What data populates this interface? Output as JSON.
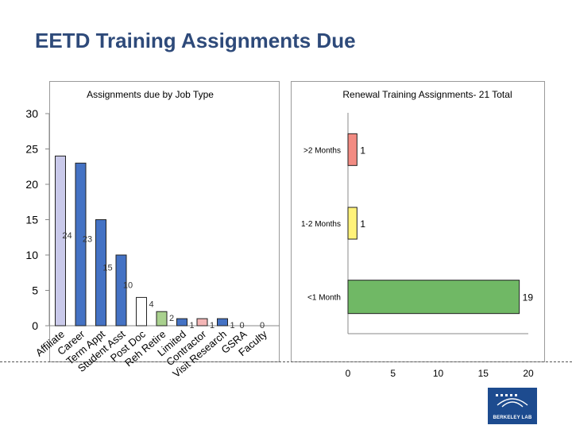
{
  "slide": {
    "title": "EETD Training Assignments Due",
    "logo_text": "BERKELEY LAB"
  },
  "chart_data": [
    {
      "type": "bar",
      "title": "Assignments due by Job Type",
      "categories": [
        "Affiliate",
        "Career",
        "Term Appt",
        "Student Asst",
        "Post Doc",
        "Reh Retire",
        "Limited",
        "Contractor",
        "Visit Research",
        "GSRA",
        "Faculty"
      ],
      "values": [
        24,
        23,
        15,
        10,
        4,
        2,
        1,
        1,
        1,
        0,
        0
      ],
      "colors": [
        "#c9c9ea",
        "#4472c4",
        "#4472c4",
        "#4472c4",
        "#ffffff",
        "#a9d18e",
        "#4472c4",
        "#f4b6b6",
        "#4472c4",
        "#ffffff",
        "#ffffff"
      ],
      "ylim": [
        0,
        30
      ],
      "yticks": [
        0,
        5,
        10,
        15,
        20,
        25,
        30
      ],
      "grid": false,
      "legend": "none"
    },
    {
      "type": "bar",
      "orientation": "horizontal",
      "title": "Renewal Training Assignments- 21 Total",
      "categories": [
        ">2 Months",
        "1-2 Months",
        "<1 Month"
      ],
      "values": [
        1,
        1,
        19
      ],
      "colors": [
        "#f28b82",
        "#fff27a",
        "#70b865"
      ],
      "xlim": [
        0,
        20
      ],
      "xticks": [
        0,
        5,
        10,
        15,
        20
      ],
      "grid": false,
      "legend": "none"
    }
  ]
}
